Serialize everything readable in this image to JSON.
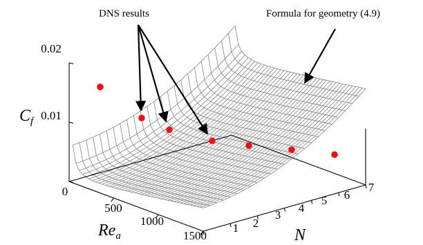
{
  "chart_data": {
    "type": "surface-scatter-3d",
    "axes": {
      "z": {
        "ticks": [
          "0",
          "0.01",
          "0.02"
        ],
        "range": [
          0,
          0.02
        ]
      },
      "x": {
        "ticks": [
          "500",
          "1000",
          "1500"
        ],
        "range": [
          0,
          1500
        ]
      },
      "y": {
        "ticks": [
          "1",
          "2",
          "3",
          "4",
          "5",
          "6",
          "7"
        ],
        "range": [
          1,
          7
        ]
      }
    },
    "labels": {
      "z_main": "C",
      "z_sub": "f",
      "x_main": "Re",
      "x_sub": "a",
      "y_main": "N"
    },
    "annotations": {
      "dns": "DNS results",
      "formula": "Formula for geometry (4.9)"
    },
    "dns_points": [
      {
        "N": 1,
        "Re": 150,
        "Cf": 0.0142
      },
      {
        "N": 2,
        "Re": 500,
        "Cf": 0.0098
      },
      {
        "N": 3,
        "Re": 500,
        "Cf": 0.008
      },
      {
        "N": 4,
        "Re": 500,
        "Cf": 0.0063
      },
      {
        "N": 5,
        "Re": 500,
        "Cf": 0.005
      },
      {
        "N": 6,
        "Re": 500,
        "Cf": 0.0045
      },
      {
        "N": 7,
        "Re": 500,
        "Cf": 0.004
      }
    ],
    "colors": {
      "points": "#ee1111",
      "mesh": "#8a8a8a"
    }
  }
}
